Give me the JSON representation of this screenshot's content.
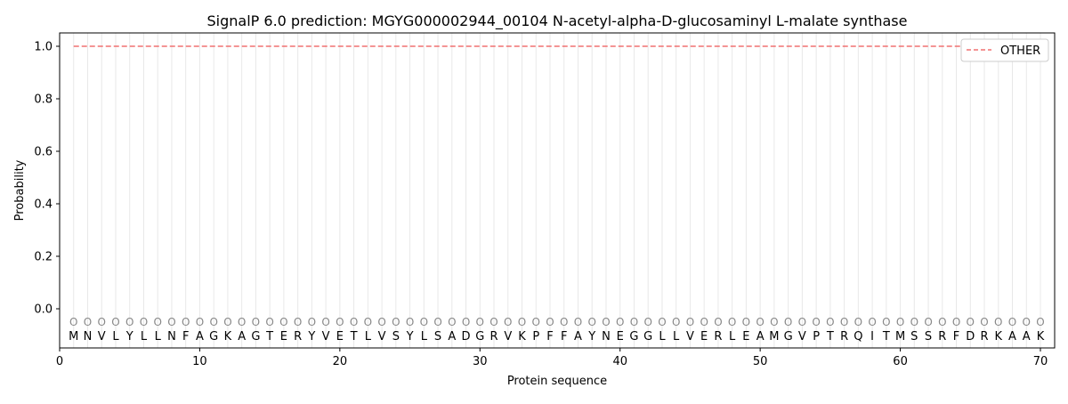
{
  "chart_data": {
    "type": "line",
    "title": "SignalP 6.0 prediction: MGYG000002944_00104 N-acetyl-alpha-D-glucosaminyl L-malate synthase",
    "xlabel": "Protein sequence",
    "ylabel": "Probability",
    "xlim": [
      0,
      71
    ],
    "ylim": [
      -0.15,
      1.05
    ],
    "x_ticks": [
      0,
      10,
      20,
      30,
      40,
      50,
      60,
      70
    ],
    "y_ticks": [
      "0.0",
      "0.2",
      "0.4",
      "0.6",
      "0.8",
      "1.0"
    ],
    "grid": "vertical lines at each residue",
    "legend_position": "top-right",
    "sequence": [
      "M",
      "N",
      "V",
      "L",
      "Y",
      "L",
      "L",
      "N",
      "F",
      "A",
      "G",
      "K",
      "A",
      "G",
      "T",
      "E",
      "R",
      "Y",
      "V",
      "E",
      "T",
      "L",
      "V",
      "S",
      "Y",
      "L",
      "S",
      "A",
      "D",
      "G",
      "R",
      "V",
      "K",
      "P",
      "F",
      "F",
      "A",
      "Y",
      "N",
      "E",
      "G",
      "G",
      "L",
      "L",
      "V",
      "E",
      "R",
      "L",
      "E",
      "A",
      "M",
      "G",
      "V",
      "P",
      "T",
      "R",
      "Q",
      "I",
      "T",
      "M",
      "S",
      "S",
      "R",
      "F",
      "D",
      "R",
      "K",
      "A",
      "A",
      "K"
    ],
    "predicted_labels": "O",
    "series": [
      {
        "name": "OTHER",
        "color": "#f07070",
        "style": "dashed",
        "x_range": [
          1,
          70
        ],
        "value": 1.0
      }
    ]
  }
}
